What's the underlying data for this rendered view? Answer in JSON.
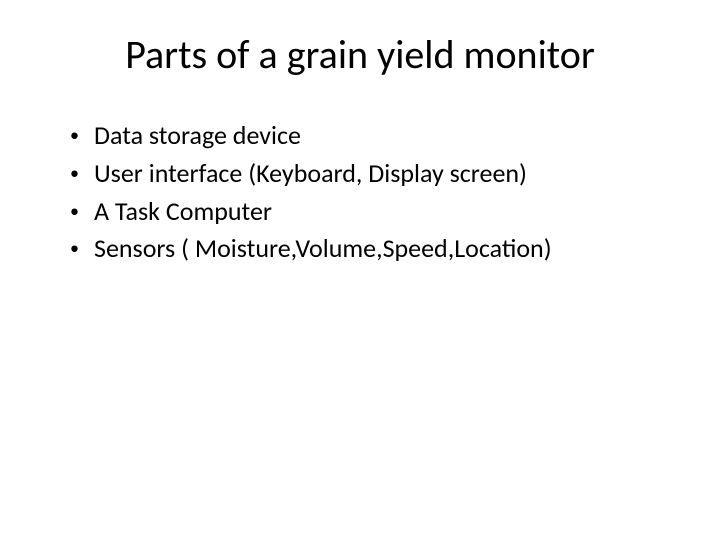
{
  "slide": {
    "title": "Parts of a grain yield monitor",
    "title_fontsize": 40,
    "title_color": "#000000",
    "body_fontsize": 26,
    "body_color": "#000000",
    "background_color": "#ffffff",
    "bullets": [
      "Data storage device",
      "User interface (Keyboard, Display screen)",
      "A Task Computer",
      "Sensors ( Moisture,Volume,Speed,Location)"
    ],
    "bullet_marker": "•"
  }
}
